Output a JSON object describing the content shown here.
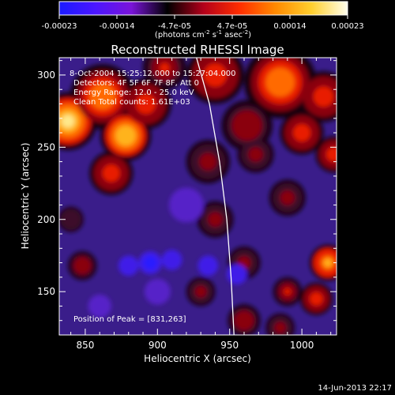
{
  "colorbar": {
    "ticks": [
      "-0.00023",
      "-0.00014",
      "-4.7e-05",
      "4.7e-05",
      "0.00014",
      "0.00023"
    ],
    "units_prefix": "(photons cm",
    "units_exp1": "-2",
    "units_mid": " s",
    "units_exp2": "-1",
    "units_mid2": " asec",
    "units_exp3": "-2",
    "units_suffix": ")",
    "colors": [
      "#1a1aff",
      "#4b16ff",
      "#7a14d9",
      "#000000",
      "#b3001a",
      "#ff2d00",
      "#ff8a00",
      "#ffcf2e",
      "#ffffee"
    ]
  },
  "chart_data": {
    "type": "heatmap",
    "title": "Reconstructed RHESSI Image",
    "xlabel": "Heliocentric X (arcsec)",
    "ylabel": "Heliocentric Y (arcsec)",
    "xlim": [
      832,
      1024
    ],
    "ylim": [
      120,
      312
    ],
    "xticks": [
      850,
      900,
      950,
      1000
    ],
    "yticks": [
      150,
      200,
      250,
      300
    ],
    "xtick_labels": [
      "850",
      "900",
      "950",
      "1000"
    ],
    "ytick_labels": [
      "150",
      "200",
      "250",
      "300"
    ],
    "peak": [
      831,
      263
    ],
    "limb_curve": [
      [
        927,
        312
      ],
      [
        936,
        280
      ],
      [
        943,
        240
      ],
      [
        948,
        200
      ],
      [
        951,
        160
      ],
      [
        953,
        120
      ]
    ],
    "annotations": [
      " 8-Oct-2004 15:25:12.000 to 15:27:04.000",
      "Detectors: 4F 5F 6F 7F 8F, Att 0",
      "Energy Range: 12.0 - 25.0 keV",
      "Clean    Total counts: 1.61E+03"
    ],
    "peak_label": "Position of Peak = [831,263]",
    "blobs": [
      {
        "x": 838,
        "y": 268,
        "r": 16,
        "v": 1.0
      },
      {
        "x": 862,
        "y": 285,
        "r": 18,
        "v": 0.75
      },
      {
        "x": 878,
        "y": 258,
        "r": 14,
        "v": 0.9
      },
      {
        "x": 892,
        "y": 280,
        "r": 14,
        "v": 0.6
      },
      {
        "x": 868,
        "y": 232,
        "r": 12,
        "v": 0.55
      },
      {
        "x": 905,
        "y": 305,
        "r": 12,
        "v": 0.5
      },
      {
        "x": 940,
        "y": 300,
        "r": 16,
        "v": 0.55
      },
      {
        "x": 985,
        "y": 295,
        "r": 20,
        "v": 0.7
      },
      {
        "x": 1015,
        "y": 285,
        "r": 14,
        "v": 0.6
      },
      {
        "x": 962,
        "y": 265,
        "r": 14,
        "v": 0.45
      },
      {
        "x": 968,
        "y": 245,
        "r": 10,
        "v": 0.4
      },
      {
        "x": 1000,
        "y": 260,
        "r": 12,
        "v": 0.55
      },
      {
        "x": 1022,
        "y": 245,
        "r": 10,
        "v": 0.6
      },
      {
        "x": 935,
        "y": 240,
        "r": 12,
        "v": 0.4
      },
      {
        "x": 940,
        "y": 200,
        "r": 10,
        "v": 0.35
      },
      {
        "x": 960,
        "y": 170,
        "r": 9,
        "v": 0.4
      },
      {
        "x": 990,
        "y": 215,
        "r": 10,
        "v": 0.35
      },
      {
        "x": 1018,
        "y": 170,
        "r": 10,
        "v": 0.8
      },
      {
        "x": 990,
        "y": 150,
        "r": 8,
        "v": 0.5
      },
      {
        "x": 1010,
        "y": 145,
        "r": 9,
        "v": 0.6
      },
      {
        "x": 960,
        "y": 130,
        "r": 9,
        "v": 0.45
      },
      {
        "x": 930,
        "y": 150,
        "r": 8,
        "v": 0.35
      },
      {
        "x": 985,
        "y": 125,
        "r": 8,
        "v": 0.4
      },
      {
        "x": 848,
        "y": 168,
        "r": 8,
        "v": 0.45
      },
      {
        "x": 840,
        "y": 200,
        "r": 7,
        "v": 0.3
      },
      {
        "x": 895,
        "y": 170,
        "r": 8,
        "v": -0.55
      },
      {
        "x": 880,
        "y": 168,
        "r": 7,
        "v": -0.5
      },
      {
        "x": 910,
        "y": 172,
        "r": 7,
        "v": -0.5
      },
      {
        "x": 935,
        "y": 168,
        "r": 7,
        "v": -0.45
      },
      {
        "x": 955,
        "y": 162,
        "r": 7,
        "v": -0.5
      },
      {
        "x": 920,
        "y": 210,
        "r": 12,
        "v": -0.25
      },
      {
        "x": 900,
        "y": 150,
        "r": 9,
        "v": -0.2
      },
      {
        "x": 860,
        "y": 140,
        "r": 8,
        "v": -0.15
      }
    ]
  },
  "footer": {
    "timestamp": "14-Jun-2013 22:17"
  }
}
